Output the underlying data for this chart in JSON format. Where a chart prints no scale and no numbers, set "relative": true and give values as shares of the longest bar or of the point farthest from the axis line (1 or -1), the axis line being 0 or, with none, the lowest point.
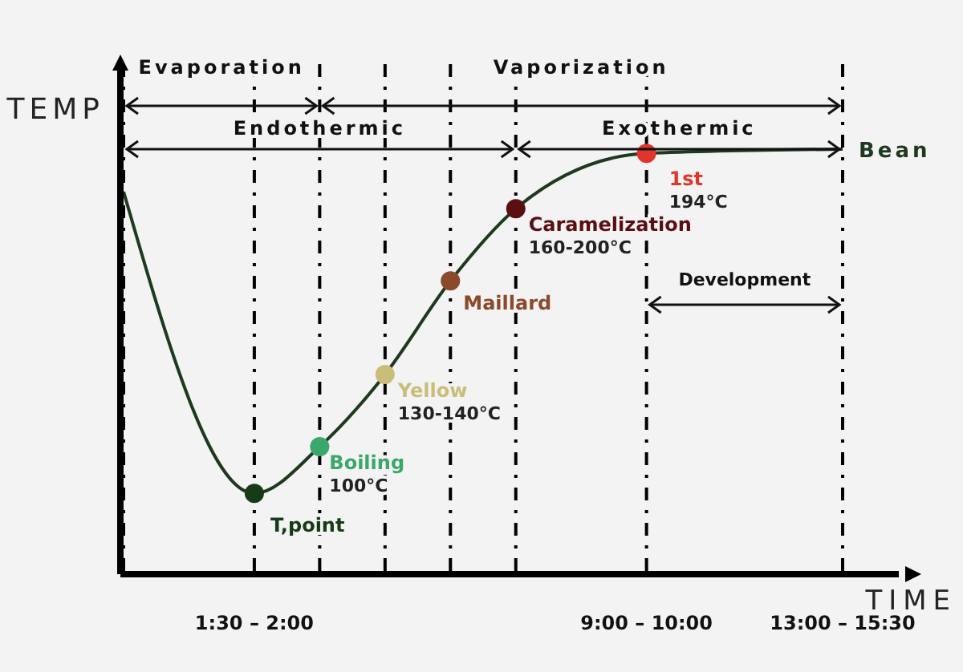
{
  "chart_data": {
    "type": "line",
    "relative": true,
    "xlabel": "TIME",
    "ylabel": "TEMP",
    "categories": [
      null,
      null,
      "1:30 – 2:00",
      null,
      null,
      null,
      null,
      null,
      "9:00 – 10:00",
      null,
      null,
      "13:00 – 15:30"
    ],
    "series": [
      {
        "name": "Bean",
        "color": "#1e3a1e",
        "values": [
          0.9,
          null,
          0.19,
          0.3,
          0.47,
          0.69,
          0.86,
          null,
          0.99,
          null,
          null,
          1.0
        ],
        "colors": [
          null,
          null,
          "#163b16",
          "#3aa86b",
          "#c9bd7a",
          "#8b4a2b",
          "#5a0f12",
          null,
          "#e0352b",
          null,
          null,
          null
        ]
      }
    ],
    "marker": "circle",
    "line_style": "solid",
    "grid": "x",
    "legend": false,
    "annotations": [
      "Evaporation",
      "Vaporization",
      "Endothermic",
      "Exothermic",
      "Development",
      {
        "text": "T,point",
        "x": "1:30 – 2:00",
        "y": 0.19
      },
      "Boiling",
      "100°C",
      "Yellow",
      "130-140°C",
      "Maillard",
      "Caramelization",
      "160-200°C",
      {
        "text": "1st",
        "x": "9:00 – 10:00",
        "y": 0.99
      },
      {
        "text": "194°C",
        "x": "9:00 – 10:00",
        "y": 0.99
      }
    ]
  }
}
